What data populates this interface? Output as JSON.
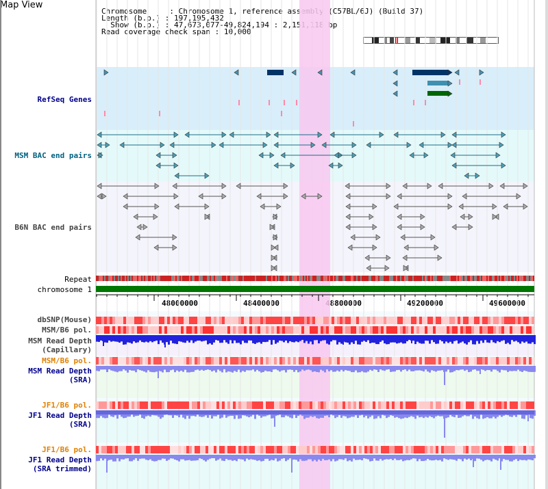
{
  "view_title": "Map View",
  "info": {
    "chromosome_key": "Chromosome     ",
    "chromosome_value": "Chromosome 1, reference assembly (C57BL/6J) (Build 37)",
    "length_key": "Length (b.p.) ",
    "length_value": "197,195,432",
    "show_key": "  Show (b.p.) ",
    "show_value": "47,673,077-49,824,194 : 2,151,118 bp",
    "coverage_key": "Read coverage check span ",
    "coverage_value": "10,000"
  },
  "tracks": {
    "refseq": "RefSeq Genes",
    "msm_bac": "MSM BAC end pairs",
    "b6n_bac": "B6N BAC end pairs",
    "repeat": "Repeat",
    "chromosome": "chromosome 1",
    "dbsnp": "dbSNP(Mouse)",
    "msm_b6_pol_1": "MSM/B6 pol.",
    "msm_read_depth_cap_1": "MSM Read Depth",
    "msm_read_depth_cap_2": "(Capillary)",
    "msm_b6_pol_2": "MSM/B6 pol.",
    "msm_read_depth_sra_1": "MSM Read Depth",
    "msm_read_depth_sra_2": "(SRA)",
    "jf1_b6_pol_1": "JF1/B6 pol.",
    "jf1_read_depth_sra_1": "JF1 Read Depth",
    "jf1_read_depth_sra_2": "(SRA)",
    "jf1_b6_pol_2": "JF1/B6 pol.",
    "jf1_read_depth_trim_1": "JF1 Read Depth",
    "jf1_read_depth_trim_2": "(SRA trimmed)"
  },
  "axis": {
    "ticks": [
      "48000000",
      "48400000",
      "48800000",
      "49200000",
      "49600000"
    ]
  },
  "colors": {
    "highlight": "#f8c8f0",
    "refseq_bg": "#d8eefa",
    "msm_bg": "#e4fafa",
    "b6n_bg": "#f4f4fc",
    "gene_dark": "#003366",
    "gene_teal": "#4090b0",
    "gene_green": "#006600",
    "chromosome_bar": "#007700",
    "depth_dark": "#2222dd",
    "depth_light": "#8888ee",
    "label_orange": "#e08000"
  }
}
